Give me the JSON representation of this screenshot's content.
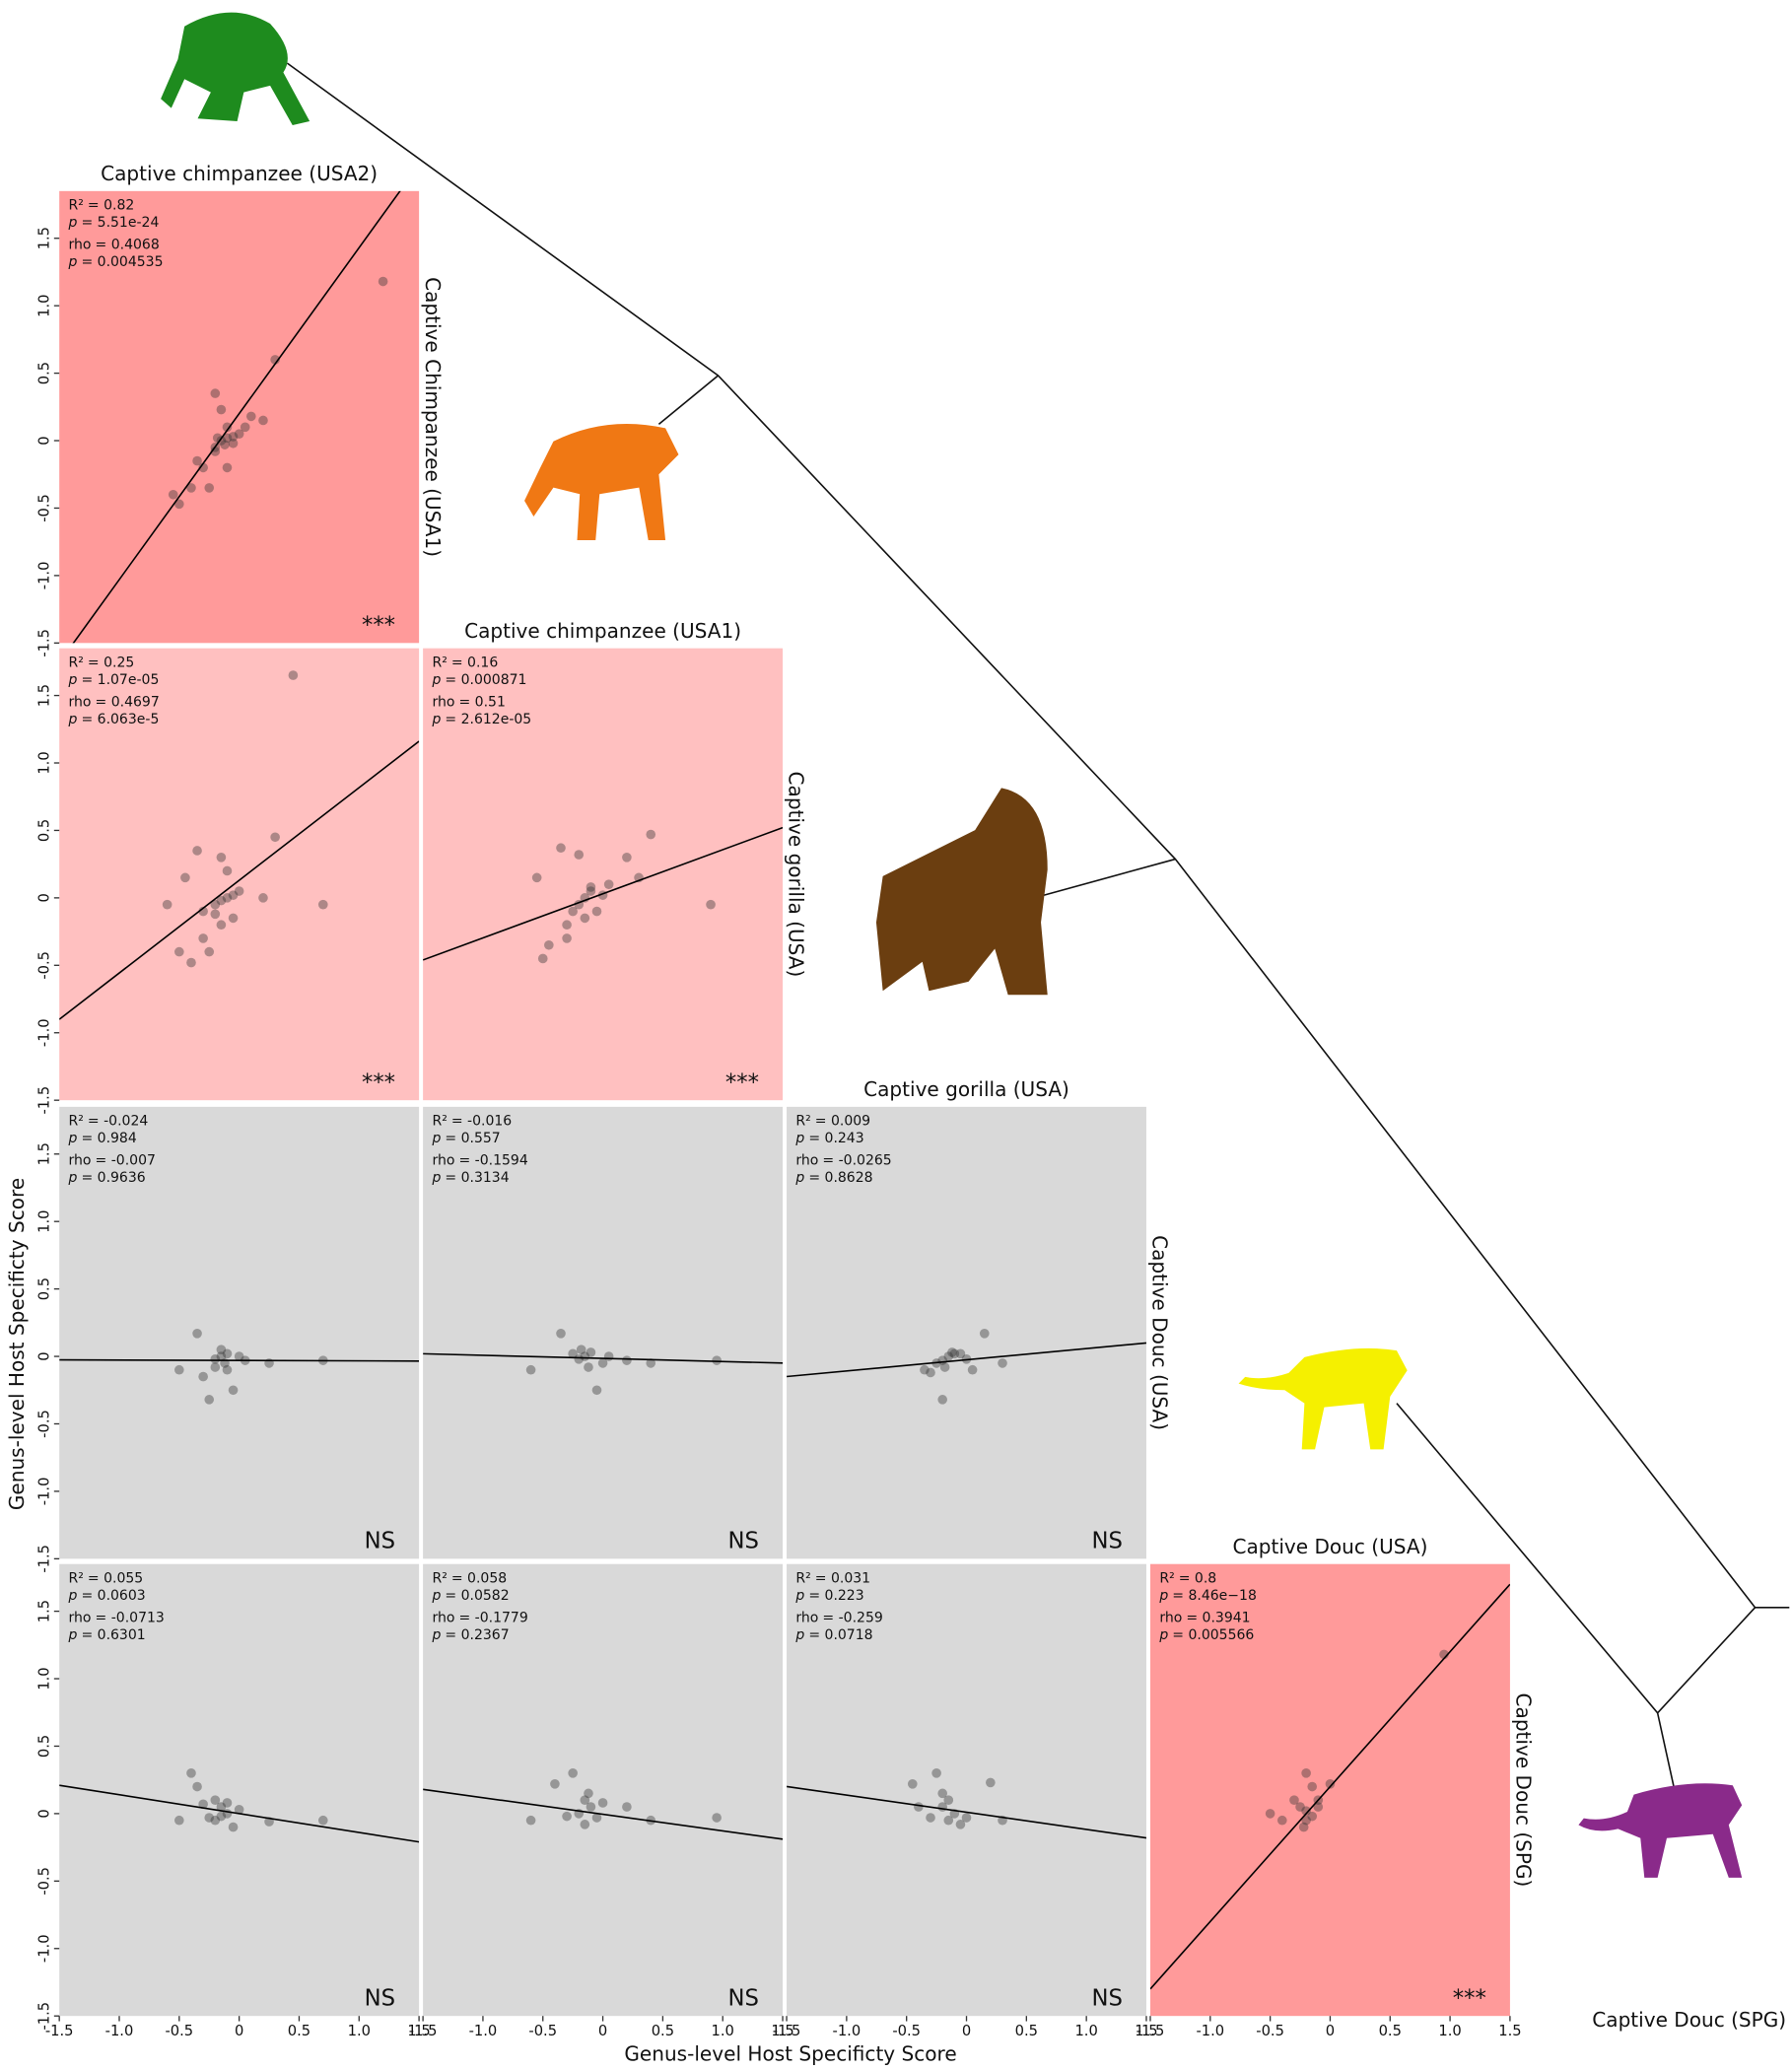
{
  "x_label": "Genus-level Host Specificty Score",
  "y_label": "Genus-level Host Specificty Score",
  "corner_label": "Captive Douc (SPG)",
  "axes": {
    "xlim": [
      -1.5,
      1.5
    ],
    "ylim": [
      -1.5,
      1.85
    ],
    "xticks": [
      -1.5,
      {
        "value": -1,
        "label": "-1.0"
      },
      -0.5,
      0,
      0.5,
      {
        "value": 1,
        "label": "1.0"
      },
      1.5
    ],
    "yticks": [
      -1.5,
      {
        "value": -1,
        "label": "-1.0"
      },
      -0.5,
      0,
      0.5,
      {
        "value": 1,
        "label": "1.0"
      },
      1.5
    ]
  },
  "chart_data": [
    {
      "type": "scatter",
      "title": "Captive chimpanzee (USA2)",
      "y_title": "Captive Chimpanzee (USA1)",
      "color": "#ff9a9a",
      "stats": [
        {
          "name": "R²",
          "text": "= 0.82"
        },
        {
          "name": "p",
          "text": "= 5.51e-24"
        },
        {
          "name": "rho",
          "text": "= 0.4068"
        },
        {
          "name": "p",
          "text": "= 0.004535"
        }
      ],
      "significance": "***",
      "x": [
        1.2,
        0.3,
        -0.2,
        -0.15,
        -0.1,
        0.2,
        0.1,
        0,
        -0.15,
        -0.2,
        -0.1,
        -0.05,
        -0.3,
        -0.35,
        -0.1,
        -0.4,
        -0.5,
        -0.55,
        -0.25,
        -0.2,
        -0.05,
        0.05,
        -0.12,
        -0.18
      ],
      "y": [
        1.18,
        0.6,
        0.35,
        0.23,
        0.1,
        0.15,
        0.18,
        0.05,
        0,
        -0.05,
        0.02,
        0.03,
        -0.2,
        -0.15,
        -0.2,
        -0.35,
        -0.47,
        -0.4,
        -0.35,
        -0.08,
        -0.02,
        0.1,
        -0.03,
        0.02
      ],
      "fit": {
        "slope": 1.23,
        "intercept": 0.2
      }
    },
    {
      "type": "scatter",
      "color": "#ffc0c0",
      "stats": [
        {
          "name": "R²",
          "text": "= 0.25"
        },
        {
          "name": "p",
          "text": "= 1.07e-05"
        },
        {
          "name": "rho",
          "text": "= 0.4697"
        },
        {
          "name": "p",
          "text": "= 6.063e-5"
        }
      ],
      "significance": "***",
      "x": [
        0.45,
        0.3,
        0.7,
        -0.6,
        -0.35,
        -0.45,
        -0.15,
        -0.1,
        0.2,
        -0.2,
        -0.15,
        -0.1,
        -0.3,
        -0.3,
        -0.25,
        -0.4,
        -0.5,
        0,
        -0.05,
        -0.15,
        -0.05,
        -0.2
      ],
      "y": [
        1.65,
        0.45,
        -0.05,
        -0.05,
        0.35,
        0.15,
        0.3,
        0.2,
        0,
        -0.05,
        -0.02,
        0,
        -0.1,
        -0.3,
        -0.4,
        -0.48,
        -0.4,
        0.05,
        -0.15,
        -0.2,
        0.02,
        -0.12
      ],
      "fit": {
        "slope": 0.687,
        "intercept": 0.13
      }
    },
    {
      "type": "scatter",
      "title": "Captive chimpanzee (USA1)",
      "y_title": "Captive gorilla (USA)",
      "color": "#ffc0c0",
      "stats": [
        {
          "name": "R²",
          "text": "= 0.16"
        },
        {
          "name": "p",
          "text": "= 0.000871"
        },
        {
          "name": "rho",
          "text": "= 0.51"
        },
        {
          "name": "p",
          "text": "= 2.612e-05"
        }
      ],
      "significance": "***",
      "x": [
        0.4,
        0.2,
        0.3,
        0.9,
        -0.35,
        -0.2,
        -0.55,
        -0.45,
        -0.5,
        -0.3,
        -0.3,
        -0.15,
        -0.1,
        -0.2,
        0,
        -0.05,
        -0.25,
        -0.15,
        0.05,
        -0.1
      ],
      "y": [
        0.47,
        0.3,
        0.15,
        -0.05,
        0.37,
        0.32,
        0.15,
        -0.35,
        -0.45,
        -0.2,
        -0.3,
        0,
        0.05,
        -0.05,
        0.02,
        -0.1,
        -0.1,
        -0.15,
        0.1,
        0.08
      ],
      "fit": {
        "slope": 0.327,
        "intercept": 0.03
      }
    },
    {
      "type": "scatter",
      "color": "#d9d9d9",
      "stats": [
        {
          "name": "R²",
          "text": "= -0.024"
        },
        {
          "name": "p",
          "text": "= 0.984"
        },
        {
          "name": "rho",
          "text": "= -0.007"
        },
        {
          "name": "p",
          "text": "= 0.9636"
        }
      ],
      "significance": "NS",
      "x": [
        -0.35,
        -0.15,
        -0.1,
        -0.2,
        0.7,
        0.25,
        -0.5,
        -0.3,
        -0.25,
        -0.05,
        0,
        -0.15,
        -0.12,
        -0.2,
        0.05,
        -0.1
      ],
      "y": [
        0.17,
        0,
        0.02,
        -0.02,
        -0.03,
        -0.05,
        -0.1,
        -0.15,
        -0.32,
        -0.25,
        0,
        0.05,
        -0.05,
        -0.08,
        -0.03,
        -0.1
      ],
      "fit": {
        "slope": -0.003,
        "intercept": -0.03
      }
    },
    {
      "type": "scatter",
      "color": "#d9d9d9",
      "stats": [
        {
          "name": "R²",
          "text": "= -0.016"
        },
        {
          "name": "p",
          "text": "= 0.557"
        },
        {
          "name": "rho",
          "text": "= -0.1594"
        },
        {
          "name": "p",
          "text": "= 0.3134"
        }
      ],
      "significance": "NS",
      "x": [
        0.95,
        0.4,
        -0.6,
        -0.35,
        -0.05,
        -0.15,
        -0.1,
        -0.2,
        0,
        0.2,
        -0.25,
        -0.12,
        -0.18,
        0.05
      ],
      "y": [
        -0.03,
        -0.05,
        -0.1,
        0.17,
        -0.25,
        0,
        0.03,
        -0.02,
        -0.05,
        -0.03,
        0.02,
        -0.08,
        0.05,
        0
      ],
      "fit": {
        "slope": -0.023,
        "intercept": -0.015
      }
    },
    {
      "type": "scatter",
      "title": "Captive gorilla (USA)",
      "y_title": "Captive Douc (USA)",
      "color": "#d9d9d9",
      "stats": [
        {
          "name": "R²",
          "text": "= 0.009"
        },
        {
          "name": "p",
          "text": "= 0.243"
        },
        {
          "name": "rho",
          "text": "= -0.0265"
        },
        {
          "name": "p",
          "text": "= 0.8628"
        }
      ],
      "significance": "NS",
      "x": [
        0.15,
        0.3,
        -0.2,
        -0.35,
        -0.15,
        -0.1,
        -0.2,
        -0.25,
        0,
        -0.3,
        -0.12,
        -0.18,
        0.05,
        -0.05
      ],
      "y": [
        0.17,
        -0.05,
        -0.32,
        -0.1,
        0,
        0.02,
        -0.03,
        -0.05,
        -0.02,
        -0.12,
        0.03,
        -0.08,
        -0.1,
        0.02
      ],
      "fit": {
        "slope": 0.083,
        "intercept": -0.025
      }
    },
    {
      "type": "scatter",
      "color": "#d9d9d9",
      "stats": [
        {
          "name": "R²",
          "text": "= 0.055"
        },
        {
          "name": "p",
          "text": "= 0.0603"
        },
        {
          "name": "rho",
          "text": "= -0.0713"
        },
        {
          "name": "p",
          "text": "= 0.6301"
        }
      ],
      "significance": "NS",
      "x": [
        -0.4,
        0.7,
        0.25,
        -0.5,
        -0.35,
        -0.2,
        -0.15,
        -0.1,
        -0.25,
        -0.05,
        -0.15,
        -0.3,
        0,
        -0.1,
        -0.2
      ],
      "y": [
        0.3,
        -0.05,
        -0.06,
        -0.05,
        0.2,
        0.1,
        0.05,
        0.08,
        -0.03,
        -0.1,
        -0.02,
        0.07,
        0.03,
        0,
        -0.05
      ],
      "fit": {
        "slope": -0.14,
        "intercept": 0
      }
    },
    {
      "type": "scatter",
      "color": "#d9d9d9",
      "stats": [
        {
          "name": "R²",
          "text": "= 0.058"
        },
        {
          "name": "p",
          "text": "= 0.0582"
        },
        {
          "name": "rho",
          "text": "= -0.1779"
        },
        {
          "name": "p",
          "text": "= 0.2367"
        }
      ],
      "significance": "NS",
      "x": [
        0.95,
        0.4,
        -0.6,
        -0.25,
        -0.4,
        -0.15,
        -0.1,
        -0.2,
        -0.05,
        -0.3,
        -0.15,
        0,
        0.2,
        -0.12
      ],
      "y": [
        -0.03,
        -0.05,
        -0.05,
        0.3,
        0.22,
        0.1,
        0.05,
        0,
        -0.03,
        -0.02,
        -0.08,
        0.08,
        0.05,
        0.15
      ],
      "fit": {
        "slope": -0.123,
        "intercept": -0.005
      }
    },
    {
      "type": "scatter",
      "color": "#d9d9d9",
      "stats": [
        {
          "name": "R²",
          "text": "= 0.031"
        },
        {
          "name": "p",
          "text": "= 0.223"
        },
        {
          "name": "rho",
          "text": "= -0.259"
        },
        {
          "name": "p",
          "text": "= 0.0718"
        }
      ],
      "significance": "NS",
      "x": [
        -0.25,
        0.2,
        -0.45,
        0.3,
        -0.15,
        -0.2,
        -0.1,
        -0.3,
        -0.4,
        -0.15,
        0,
        -0.2,
        -0.05
      ],
      "y": [
        0.3,
        0.23,
        0.22,
        -0.05,
        0.1,
        0.05,
        0,
        -0.03,
        0.05,
        -0.05,
        -0.03,
        0.15,
        -0.08
      ],
      "fit": {
        "slope": -0.127,
        "intercept": 0.01
      }
    },
    {
      "type": "scatter",
      "title": "Captive Douc (USA)",
      "y_title": "Captive Douc (SPG)",
      "color": "#ff9a9a",
      "stats": [
        {
          "name": "R²",
          "text": "= 0.8"
        },
        {
          "name": "p",
          "text": "= 8.46e−18"
        },
        {
          "name": "rho",
          "text": "= 0.3941"
        },
        {
          "name": "p",
          "text": "= 0.005566"
        }
      ],
      "significance": "***",
      "x": [
        0.95,
        -0.2,
        -0.15,
        0,
        -0.5,
        -0.4,
        -0.2,
        -0.1,
        -0.3,
        -0.25,
        -0.15,
        -0.2,
        -0.1,
        -0.22
      ],
      "y": [
        1.18,
        0.3,
        0.2,
        0.22,
        0,
        -0.05,
        -0.05,
        0.1,
        0.1,
        0.05,
        -0.02,
        0.02,
        0.05,
        -0.1
      ],
      "fit": {
        "slope": 1.0,
        "intercept": 0.2
      }
    }
  ]
}
